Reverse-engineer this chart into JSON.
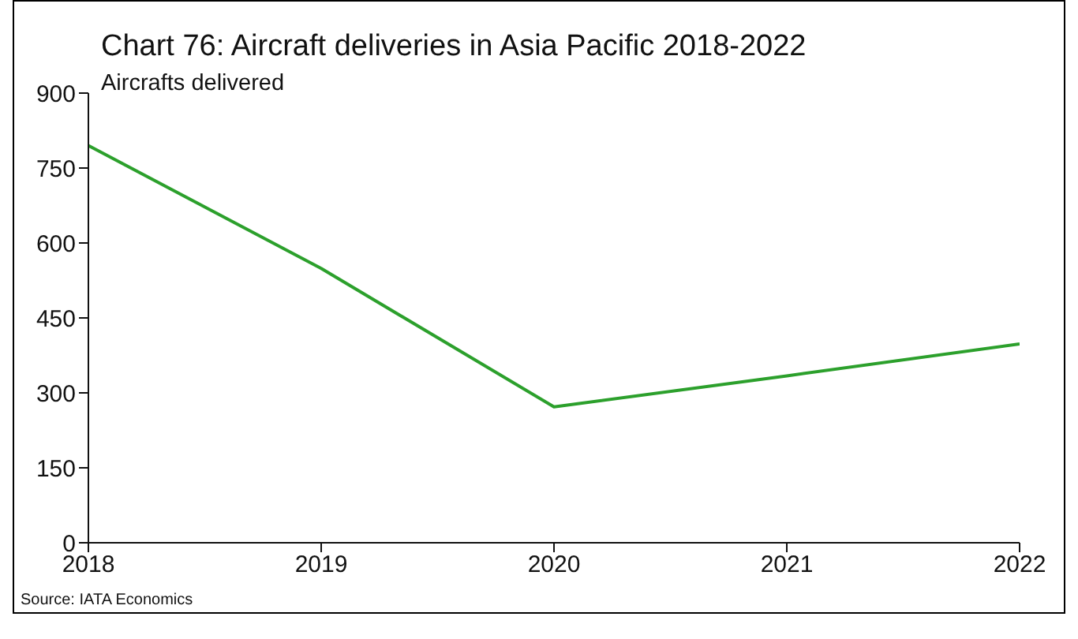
{
  "chart_data": {
    "type": "line",
    "title": "Chart 76: Aircraft deliveries in Asia Pacific 2018-2022",
    "ylabel": "Aircrafts delivered",
    "annotations": [
      "Source: IATA Economics"
    ],
    "x": [
      2018,
      2019,
      2020,
      2021,
      2022
    ],
    "series": [
      {
        "color": "#2ca02c",
        "values": [
          795,
          549,
          272,
          334,
          398
        ]
      }
    ],
    "xlim": [
      2018,
      2022
    ],
    "xticks": [
      2018,
      2019,
      2020,
      2021,
      2022
    ],
    "ylim": [
      0,
      900
    ],
    "yticks": [
      0,
      150,
      300,
      450,
      600,
      750,
      900
    ],
    "grid": false,
    "legend": false,
    "marker": "none",
    "line_style": "solid"
  }
}
